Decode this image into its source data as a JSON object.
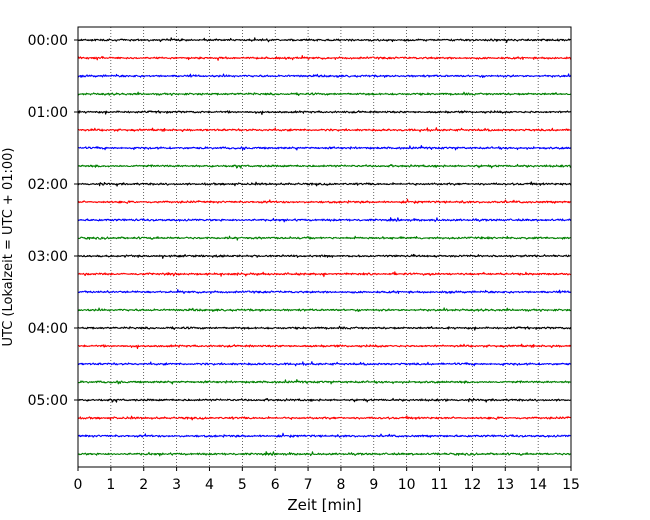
{
  "chart_data": {
    "type": "line",
    "title": "",
    "xlabel": "Zeit  [min]",
    "ylabel": "UTC (Lokalzeit = UTC + 01:00)",
    "xlim": [
      0,
      15
    ],
    "x_ticks": [
      "0",
      "1",
      "2",
      "3",
      "4",
      "5",
      "6",
      "7",
      "8",
      "9",
      "10",
      "11",
      "12",
      "13",
      "14",
      "15"
    ],
    "y_ticks": [
      "00:00",
      "01:00",
      "02:00",
      "03:00",
      "04:00",
      "05:00"
    ],
    "x_grid": true,
    "trace_interval_min": 15,
    "trace_count": 24,
    "color_cycle": [
      "#000000",
      "#ff0000",
      "#0000ff",
      "#008000"
    ],
    "traces": [
      {
        "start": "00:00",
        "color": "#000000"
      },
      {
        "start": "00:15",
        "color": "#ff0000"
      },
      {
        "start": "00:30",
        "color": "#0000ff"
      },
      {
        "start": "00:45",
        "color": "#008000"
      },
      {
        "start": "01:00",
        "color": "#000000"
      },
      {
        "start": "01:15",
        "color": "#ff0000"
      },
      {
        "start": "01:30",
        "color": "#0000ff"
      },
      {
        "start": "01:45",
        "color": "#008000"
      },
      {
        "start": "02:00",
        "color": "#000000"
      },
      {
        "start": "02:15",
        "color": "#ff0000"
      },
      {
        "start": "02:30",
        "color": "#0000ff"
      },
      {
        "start": "02:45",
        "color": "#008000"
      },
      {
        "start": "03:00",
        "color": "#000000"
      },
      {
        "start": "03:15",
        "color": "#ff0000"
      },
      {
        "start": "03:30",
        "color": "#0000ff"
      },
      {
        "start": "03:45",
        "color": "#008000"
      },
      {
        "start": "04:00",
        "color": "#000000"
      },
      {
        "start": "04:15",
        "color": "#ff0000"
      },
      {
        "start": "04:30",
        "color": "#0000ff"
      },
      {
        "start": "04:45",
        "color": "#008000"
      },
      {
        "start": "05:00",
        "color": "#000000"
      },
      {
        "start": "05:15",
        "color": "#ff0000"
      },
      {
        "start": "05:30",
        "color": "#0000ff"
      },
      {
        "start": "05:45",
        "color": "#008000"
      }
    ]
  }
}
